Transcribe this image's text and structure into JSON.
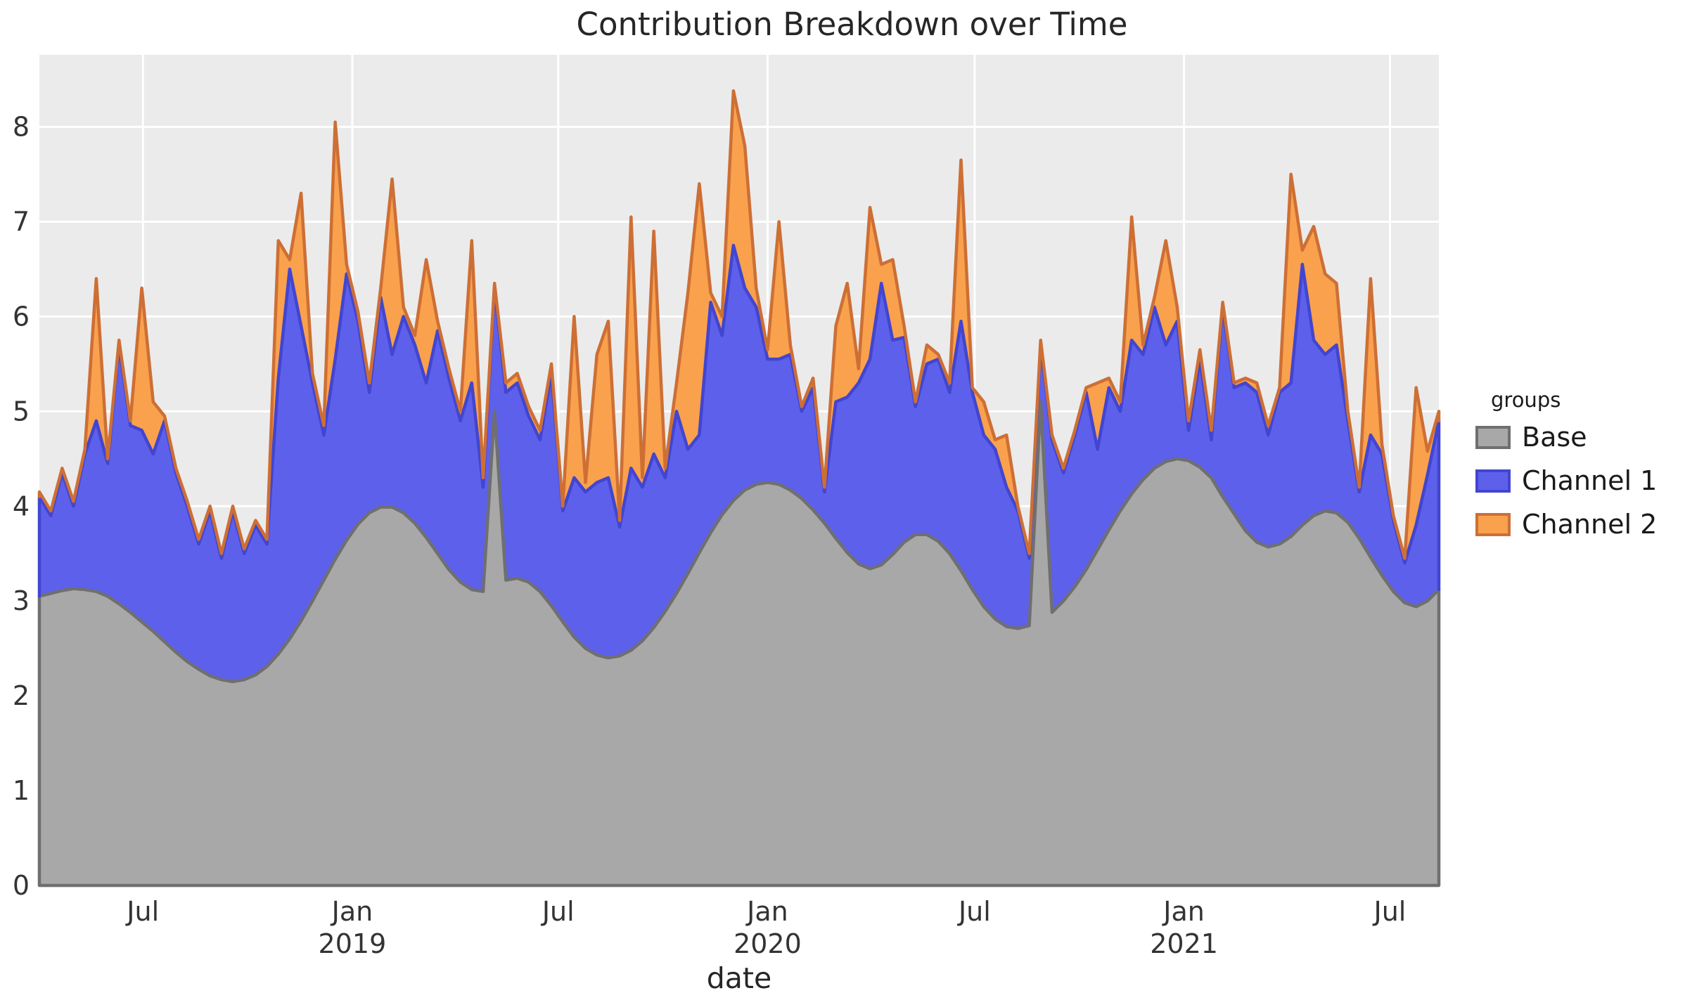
{
  "title": "Contribution Breakdown over Time",
  "axes": {
    "x_label": "date"
  },
  "legend": {
    "title": "groups"
  },
  "colors": {
    "panel_background": "#ebebeb",
    "grid": "#ffffff",
    "tick_text": "#333333",
    "title_text": "#262626"
  },
  "chart_data": {
    "type": "area",
    "stacked": true,
    "title": "Contribution Breakdown over Time",
    "xlabel": "date",
    "ylabel": "",
    "legend_title": "groups",
    "legend_position": "right",
    "grid": true,
    "ylim": [
      0,
      8.76
    ],
    "y_ticks": [
      0,
      1,
      2,
      3,
      4,
      5,
      6,
      7,
      8
    ],
    "x_start_date": "2018-04-01",
    "x_step_days": 10,
    "x_ticks": [
      {
        "pos": 9.1,
        "label": "Jul",
        "year": ""
      },
      {
        "pos": 27.5,
        "label": "Jan",
        "year": "2019"
      },
      {
        "pos": 45.6,
        "label": "Jul",
        "year": ""
      },
      {
        "pos": 64.0,
        "label": "Jan",
        "year": "2020"
      },
      {
        "pos": 82.2,
        "label": "Jul",
        "year": ""
      },
      {
        "pos": 100.6,
        "label": "Jan",
        "year": "2021"
      },
      {
        "pos": 118.7,
        "label": "Jul",
        "year": ""
      }
    ],
    "series": [
      {
        "name": "Base",
        "fill": "#a8a8a8",
        "stroke": "#6f6f6f",
        "values": [
          3.05,
          3.08,
          3.11,
          3.13,
          3.12,
          3.1,
          3.05,
          2.97,
          2.88,
          2.78,
          2.68,
          2.57,
          2.46,
          2.36,
          2.28,
          2.21,
          2.17,
          2.15,
          2.17,
          2.22,
          2.31,
          2.44,
          2.6,
          2.79,
          3.0,
          3.22,
          3.44,
          3.64,
          3.81,
          3.93,
          3.99,
          3.99,
          3.93,
          3.82,
          3.67,
          3.5,
          3.33,
          3.2,
          3.12,
          3.1,
          5.0,
          3.22,
          3.24,
          3.2,
          3.1,
          2.95,
          2.78,
          2.62,
          2.5,
          2.43,
          2.4,
          2.42,
          2.48,
          2.58,
          2.72,
          2.89,
          3.08,
          3.29,
          3.51,
          3.72,
          3.91,
          4.06,
          4.17,
          4.23,
          4.25,
          4.23,
          4.17,
          4.08,
          3.96,
          3.82,
          3.66,
          3.51,
          3.39,
          3.34,
          3.38,
          3.49,
          3.62,
          3.7,
          3.7,
          3.63,
          3.5,
          3.32,
          3.12,
          2.94,
          2.81,
          2.73,
          2.71,
          2.74,
          5.1,
          2.88,
          3.0,
          3.15,
          3.33,
          3.54,
          3.75,
          3.95,
          4.13,
          4.28,
          4.4,
          4.47,
          4.5,
          4.48,
          4.41,
          4.3,
          4.1,
          3.92,
          3.74,
          3.62,
          3.57,
          3.6,
          3.68,
          3.8,
          3.9,
          3.95,
          3.93,
          3.83,
          3.66,
          3.46,
          3.27,
          3.1,
          2.98,
          2.94,
          3.0,
          3.12
        ]
      },
      {
        "name": "Channel 1",
        "fill": "#5d60ea",
        "stroke": "#4245d0",
        "values": [
          1.05,
          0.82,
          1.24,
          0.87,
          1.43,
          1.8,
          1.4,
          2.73,
          1.97,
          2.02,
          1.87,
          2.33,
          1.89,
          1.64,
          1.32,
          1.74,
          1.28,
          1.8,
          1.33,
          1.58,
          1.29,
          2.91,
          3.9,
          3.11,
          2.3,
          1.53,
          2.11,
          2.81,
          2.14,
          1.27,
          2.21,
          1.61,
          2.07,
          1.88,
          1.63,
          2.35,
          2.02,
          1.7,
          2.18,
          1.1,
          1.3,
          1.98,
          2.06,
          1.75,
          1.6,
          2.45,
          1.17,
          1.68,
          1.65,
          1.82,
          1.9,
          1.36,
          1.92,
          1.62,
          1.83,
          1.41,
          1.92,
          1.31,
          1.24,
          2.43,
          1.89,
          2.69,
          2.13,
          1.87,
          1.3,
          1.32,
          1.43,
          0.92,
          1.29,
          0.33,
          1.44,
          1.64,
          1.91,
          2.21,
          2.97,
          2.26,
          2.16,
          1.35,
          1.8,
          1.92,
          1.7,
          2.63,
          2.08,
          1.81,
          1.79,
          1.47,
          1.24,
          0.71,
          0.6,
          1.82,
          1.35,
          1.6,
          1.87,
          1.06,
          1.5,
          1.05,
          1.62,
          1.32,
          1.7,
          1.23,
          1.45,
          0.32,
          1.14,
          0.4,
          2.0,
          1.33,
          1.56,
          1.58,
          1.18,
          1.6,
          1.62,
          2.75,
          1.85,
          1.65,
          1.77,
          1.07,
          0.49,
          1.29,
          1.28,
          0.75,
          0.42,
          0.86,
          1.33,
          1.78
        ]
      },
      {
        "name": "Channel 2",
        "fill": "#f9a14d",
        "stroke": "#cd6f35",
        "values": [
          0.05,
          0.05,
          0.05,
          0.05,
          0.05,
          1.5,
          0.05,
          0.05,
          0.05,
          1.5,
          0.55,
          0.05,
          0.05,
          0.05,
          0.05,
          0.05,
          0.05,
          0.05,
          0.05,
          0.05,
          0.05,
          1.45,
          0.1,
          1.4,
          0.1,
          0.1,
          2.5,
          0.1,
          0.1,
          0.1,
          0.1,
          1.85,
          0.1,
          0.1,
          1.3,
          0.1,
          0.1,
          0.1,
          1.5,
          0.1,
          0.05,
          0.1,
          0.1,
          0.1,
          0.1,
          0.1,
          0.05,
          1.7,
          0.1,
          1.35,
          1.65,
          0.07,
          2.65,
          0.1,
          2.35,
          0.1,
          0.3,
          1.65,
          2.65,
          0.1,
          0.2,
          1.63,
          1.5,
          0.2,
          0.1,
          1.45,
          0.1,
          0.05,
          0.1,
          0.05,
          0.8,
          1.2,
          0.15,
          1.6,
          0.2,
          0.85,
          0.12,
          0.05,
          0.2,
          0.05,
          0.1,
          1.7,
          0.05,
          0.35,
          0.1,
          0.55,
          0.05,
          0.05,
          0.05,
          0.05,
          0.05,
          0.05,
          0.05,
          0.7,
          0.1,
          0.1,
          1.3,
          0.1,
          0.1,
          1.1,
          0.15,
          0.1,
          0.1,
          0.1,
          0.05,
          0.05,
          0.05,
          0.1,
          0.1,
          0.05,
          2.2,
          0.15,
          1.2,
          0.85,
          0.65,
          0.1,
          0.05,
          1.65,
          0.1,
          0.05,
          0.05,
          1.45,
          0.25,
          0.1
        ]
      }
    ]
  }
}
